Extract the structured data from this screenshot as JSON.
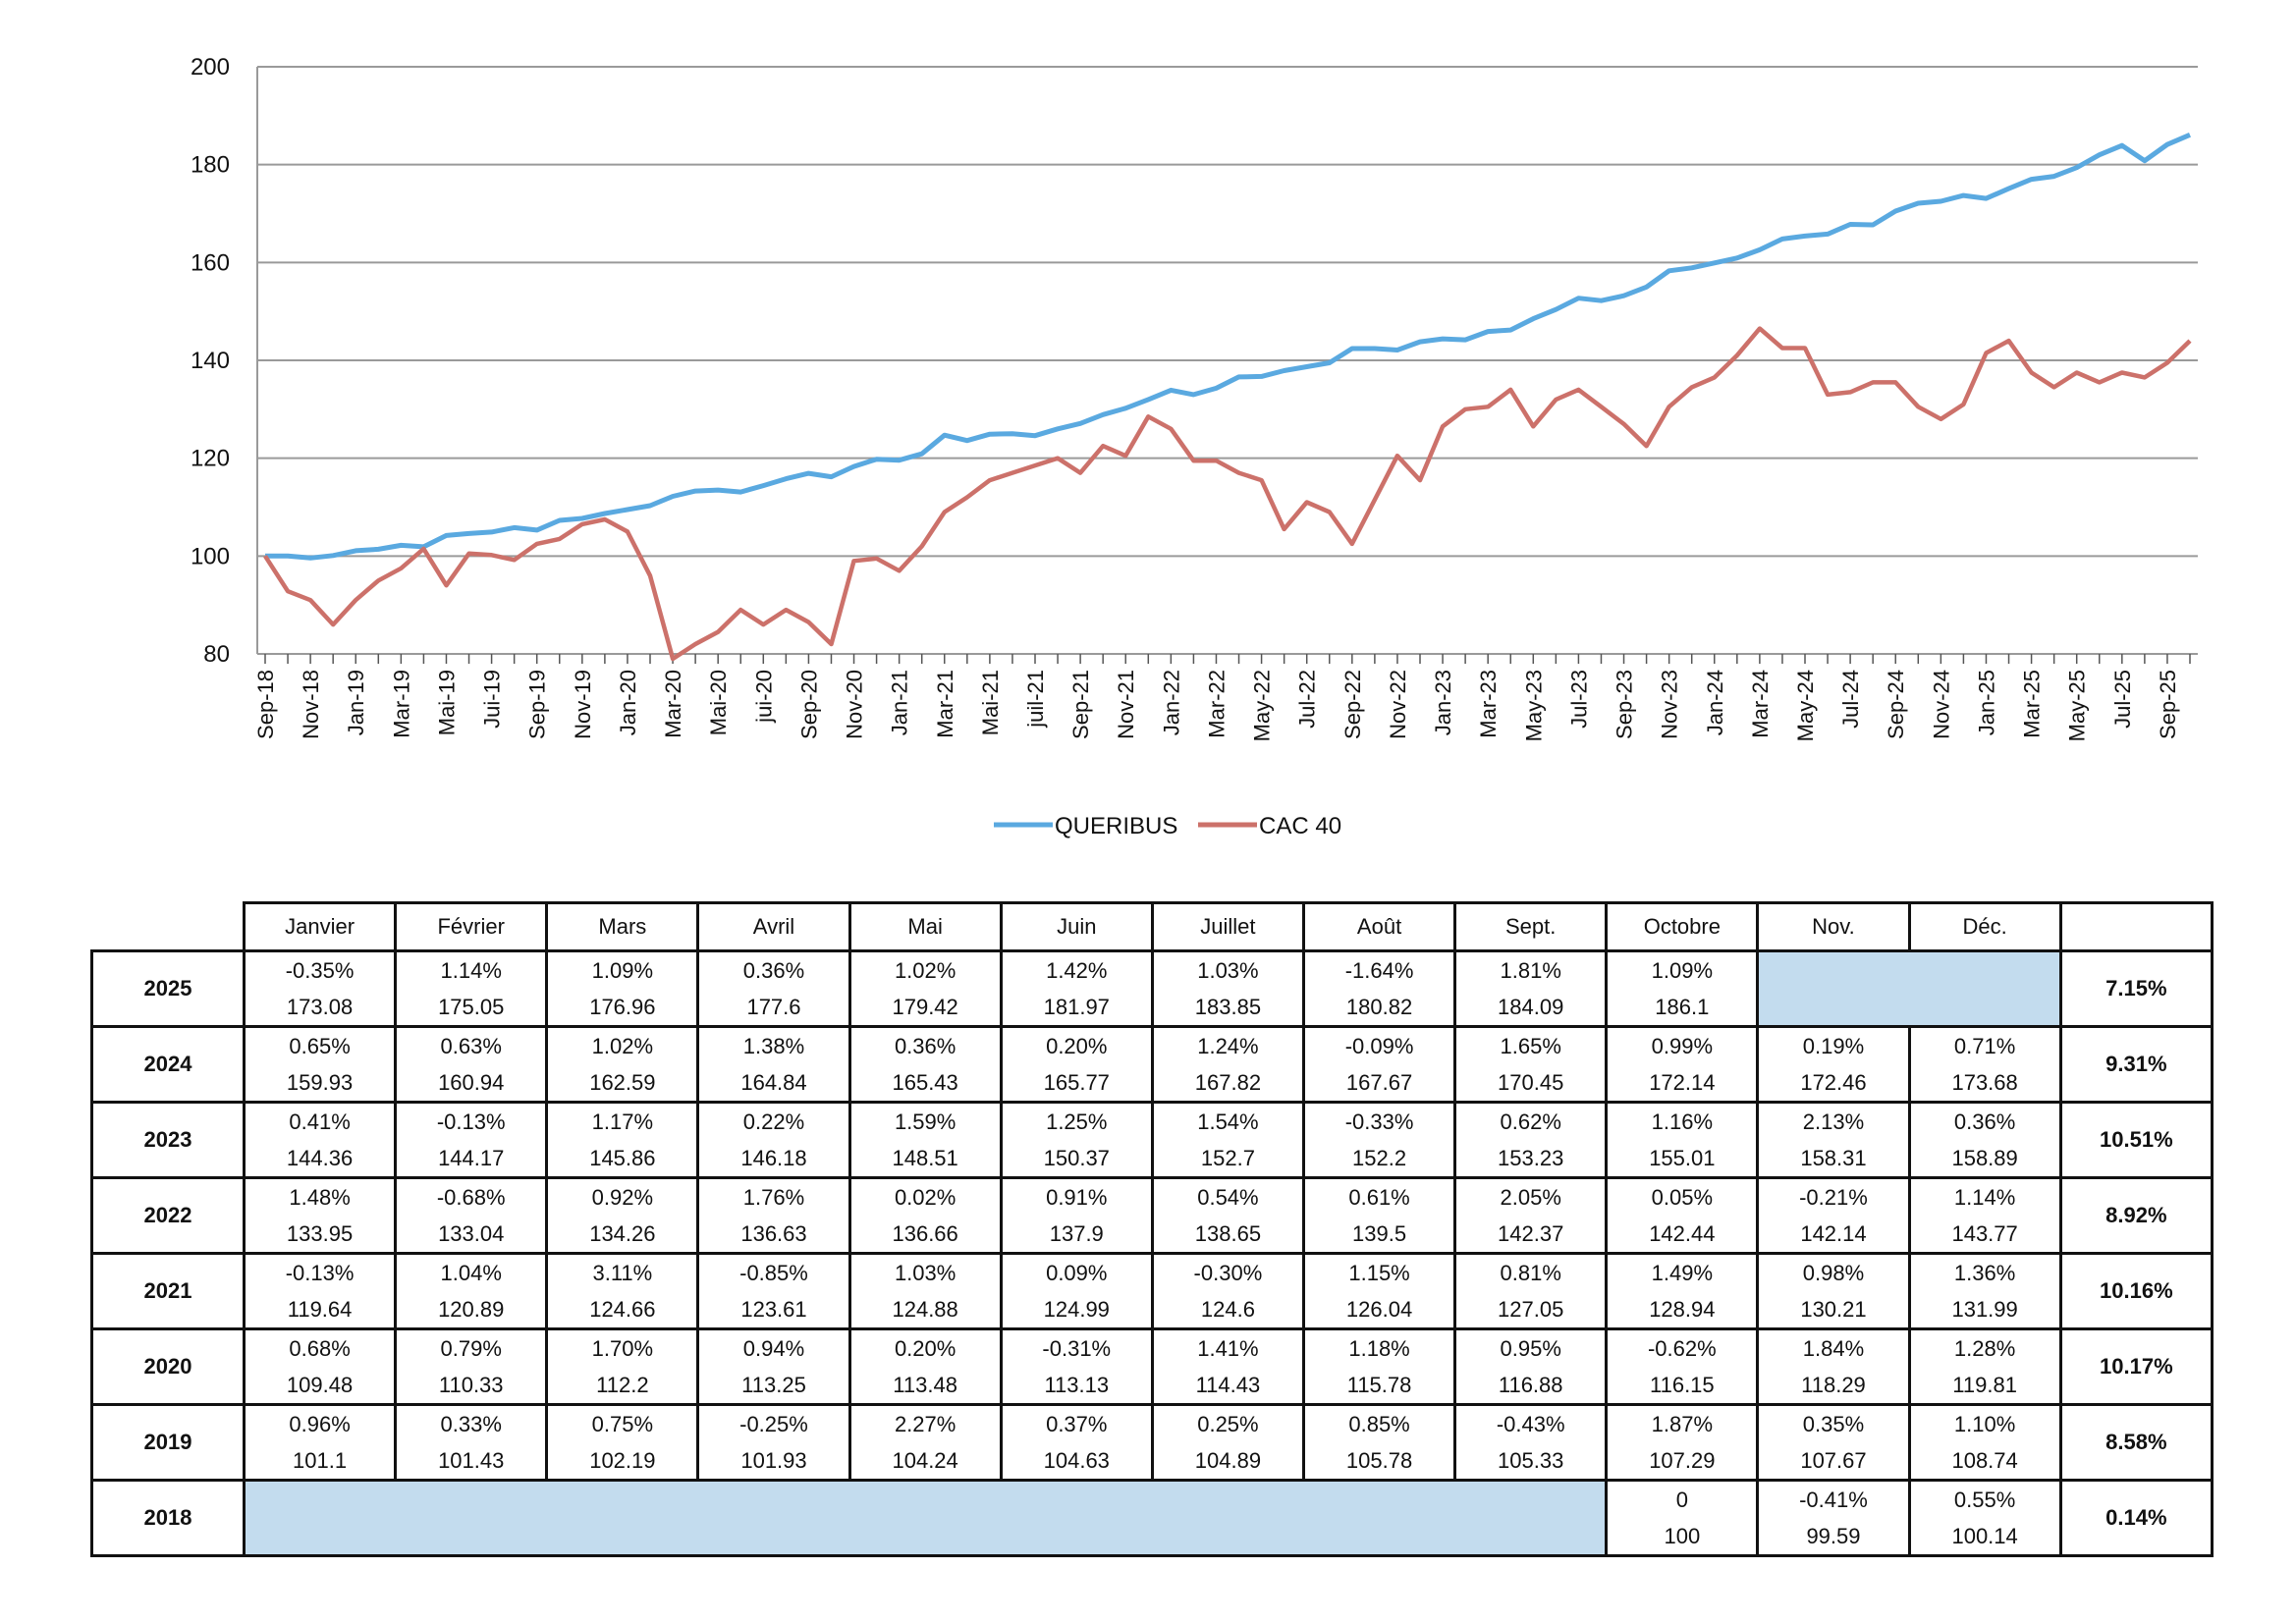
{
  "chart_data": {
    "type": "line",
    "y_ticks": [
      "200",
      "180",
      "160",
      "140",
      "120",
      "100",
      "80"
    ],
    "ylim": [
      80,
      200
    ],
    "x_tick_labels": [
      "Sep-18",
      "Nov-18",
      "Jan-19",
      "Mar-19",
      "Mai-19",
      "Jui-19",
      "Sep-19",
      "Nov-19",
      "Jan-20",
      "Mar-20",
      "Mai-20",
      "jui-20",
      "Sep-20",
      "Nov-20",
      "Jan-21",
      "Mar-21",
      "Mai-21",
      "juil-21",
      "Sep-21",
      "Nov-21",
      "Jan-22",
      "Mar-22",
      "May-22",
      "Jul-22",
      "Sep-22",
      "Nov-22",
      "Jan-23",
      "Mar-23",
      "May-23",
      "Jul-23",
      "Sep-23",
      "Nov-23",
      "Jan-24",
      "Mar-24",
      "May-24",
      "Jul-24",
      "Sep-24",
      "Nov-24",
      "Jan-25",
      "Mar-25",
      "May-25",
      "Jul-25",
      "Sep-25"
    ],
    "series": [
      {
        "name": "QUERIBUS",
        "color": "#5aa9e0",
        "values": [
          100,
          100,
          99.6,
          100.1,
          101.1,
          101.4,
          102.2,
          101.9,
          104.2,
          104.6,
          104.9,
          105.8,
          105.3,
          107.3,
          107.7,
          108.7,
          109.5,
          110.3,
          112.2,
          113.3,
          113.5,
          113.1,
          114.4,
          115.8,
          116.9,
          116.2,
          118.3,
          119.8,
          119.6,
          120.9,
          124.7,
          123.6,
          124.9,
          125,
          124.6,
          126,
          127.1,
          128.9,
          130.2,
          132,
          133.9,
          133,
          134.3,
          136.6,
          136.7,
          137.9,
          138.7,
          139.5,
          142.4,
          142.4,
          142.1,
          143.8,
          144.4,
          144.2,
          145.9,
          146.2,
          148.5,
          150.4,
          152.7,
          152.2,
          153.2,
          155,
          158.3,
          158.9,
          159.9,
          160.9,
          162.6,
          164.8,
          165.4,
          165.8,
          167.8,
          167.7,
          170.5,
          172.1,
          172.5,
          173.7,
          173.1,
          175.1,
          177,
          177.6,
          179.4,
          182,
          183.9,
          180.8,
          184.1,
          186.1
        ]
      },
      {
        "name": "CAC 40",
        "color": "#cc716a",
        "values": [
          100,
          92.8,
          91,
          86,
          91,
          95,
          97.5,
          101.5,
          94,
          100.5,
          100.2,
          99.2,
          102.5,
          103.5,
          106.5,
          107.5,
          105,
          96,
          79,
          82,
          84.5,
          89,
          86,
          89,
          86.5,
          82,
          99,
          99.5,
          97,
          102,
          109,
          112,
          115.5,
          117,
          118.5,
          120,
          117,
          122.5,
          120.5,
          128.5,
          126,
          119.5,
          119.5,
          117,
          115.5,
          105.5,
          111,
          109,
          102.5,
          111.5,
          120.5,
          115.5,
          126.5,
          130,
          130.5,
          134,
          126.5,
          132,
          134,
          130.5,
          127,
          122.5,
          130.5,
          134.5,
          136.5,
          141,
          146.5,
          142.5,
          142.5,
          133,
          133.5,
          135.5,
          135.5,
          130.5,
          128,
          131,
          141.5,
          144,
          137.5,
          134.5,
          137.5,
          135.5,
          137.5,
          136.5,
          139.5,
          144
        ]
      }
    ]
  },
  "legend": [
    {
      "label": "QUERIBUS",
      "color": "#5aa9e0"
    },
    {
      "label": "CAC 40",
      "color": "#cc716a"
    }
  ],
  "table": {
    "months": [
      "Janvier",
      "Février",
      "Mars",
      "Avril",
      "Mai",
      "Juin",
      "Juillet",
      "Août",
      "Sept.",
      "Octobre",
      "Nov.",
      "Déc."
    ],
    "rows": [
      {
        "year": "2025",
        "ytd": "7.15%",
        "pct": [
          "-0.35%",
          "1.14%",
          "1.09%",
          "0.36%",
          "1.02%",
          "1.42%",
          "1.03%",
          "-1.64%",
          "1.81%",
          "1.09%",
          "",
          ""
        ],
        "val": [
          "173.08",
          "175.05",
          "176.96",
          "177.6",
          "179.42",
          "181.97",
          "183.85",
          "180.82",
          "184.09",
          "186.1",
          "",
          ""
        ]
      },
      {
        "year": "2024",
        "ytd": "9.31%",
        "pct": [
          "0.65%",
          "0.63%",
          "1.02%",
          "1.38%",
          "0.36%",
          "0.20%",
          "1.24%",
          "-0.09%",
          "1.65%",
          "0.99%",
          "0.19%",
          "0.71%"
        ],
        "val": [
          "159.93",
          "160.94",
          "162.59",
          "164.84",
          "165.43",
          "165.77",
          "167.82",
          "167.67",
          "170.45",
          "172.14",
          "172.46",
          "173.68"
        ]
      },
      {
        "year": "2023",
        "ytd": "10.51%",
        "pct": [
          "0.41%",
          "-0.13%",
          "1.17%",
          "0.22%",
          "1.59%",
          "1.25%",
          "1.54%",
          "-0.33%",
          "0.62%",
          "1.16%",
          "2.13%",
          "0.36%"
        ],
        "val": [
          "144.36",
          "144.17",
          "145.86",
          "146.18",
          "148.51",
          "150.37",
          "152.7",
          "152.2",
          "153.23",
          "155.01",
          "158.31",
          "158.89"
        ]
      },
      {
        "year": "2022",
        "ytd": "8.92%",
        "pct": [
          "1.48%",
          "-0.68%",
          "0.92%",
          "1.76%",
          "0.02%",
          "0.91%",
          "0.54%",
          "0.61%",
          "2.05%",
          "0.05%",
          "-0.21%",
          "1.14%"
        ],
        "val": [
          "133.95",
          "133.04",
          "134.26",
          "136.63",
          "136.66",
          "137.9",
          "138.65",
          "139.5",
          "142.37",
          "142.44",
          "142.14",
          "143.77"
        ]
      },
      {
        "year": "2021",
        "ytd": "10.16%",
        "pct": [
          "-0.13%",
          "1.04%",
          "3.11%",
          "-0.85%",
          "1.03%",
          "0.09%",
          "-0.30%",
          "1.15%",
          "0.81%",
          "1.49%",
          "0.98%",
          "1.36%"
        ],
        "val": [
          "119.64",
          "120.89",
          "124.66",
          "123.61",
          "124.88",
          "124.99",
          "124.6",
          "126.04",
          "127.05",
          "128.94",
          "130.21",
          "131.99"
        ]
      },
      {
        "year": "2020",
        "ytd": "10.17%",
        "pct": [
          "0.68%",
          "0.79%",
          "1.70%",
          "0.94%",
          "0.20%",
          "-0.31%",
          "1.41%",
          "1.18%",
          "0.95%",
          "-0.62%",
          "1.84%",
          "1.28%"
        ],
        "val": [
          "109.48",
          "110.33",
          "112.2",
          "113.25",
          "113.48",
          "113.13",
          "114.43",
          "115.78",
          "116.88",
          "116.15",
          "118.29",
          "119.81"
        ]
      },
      {
        "year": "2019",
        "ytd": "8.58%",
        "pct": [
          "0.96%",
          "0.33%",
          "0.75%",
          "-0.25%",
          "2.27%",
          "0.37%",
          "0.25%",
          "0.85%",
          "-0.43%",
          "1.87%",
          "0.35%",
          "1.10%"
        ],
        "val": [
          "101.1",
          "101.43",
          "102.19",
          "101.93",
          "104.24",
          "104.63",
          "104.89",
          "105.78",
          "105.33",
          "107.29",
          "107.67",
          "108.74"
        ]
      },
      {
        "year": "2018",
        "ytd": "0.14%",
        "pct": [
          "",
          "",
          "",
          "",
          "",
          "",
          "",
          "",
          "",
          "0",
          "-0.41%",
          "0.55%"
        ],
        "val": [
          "",
          "",
          "",
          "",
          "",
          "",
          "",
          "",
          "",
          "100",
          "99.59",
          "100.14"
        ]
      }
    ]
  }
}
